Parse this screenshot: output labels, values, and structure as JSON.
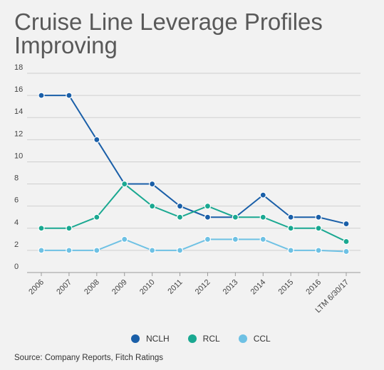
{
  "chart_data": {
    "type": "line",
    "title": "Cruise Line Leverage Profiles Improving",
    "xlabel": "",
    "ylabel": "",
    "categories": [
      "2006",
      "2007",
      "2008",
      "2009",
      "2010",
      "2011",
      "2012",
      "2013",
      "2014",
      "2015",
      "2016",
      "LTM 6/30/17"
    ],
    "y_ticks": [
      "0",
      "2",
      "4",
      "6",
      "8",
      "10",
      "12",
      "14",
      "16",
      "18"
    ],
    "ylim": [
      0,
      18
    ],
    "grid": true,
    "legend_position": "bottom",
    "series": [
      {
        "name": "NCLH",
        "color": "#1a5fa8",
        "values": [
          16,
          16,
          12,
          8,
          8,
          6,
          5,
          5,
          7,
          5,
          5,
          4.4
        ]
      },
      {
        "name": "RCL",
        "color": "#1aa891",
        "values": [
          4,
          4,
          5,
          8,
          6,
          5,
          6,
          5,
          5,
          4,
          4,
          2.8
        ]
      },
      {
        "name": "CCL",
        "color": "#6ec1e4",
        "values": [
          2,
          2,
          2,
          3,
          2,
          2,
          3,
          3,
          3,
          2,
          2,
          1.9
        ]
      }
    ],
    "source": "Source: Company Reports, Fitch Ratings"
  }
}
